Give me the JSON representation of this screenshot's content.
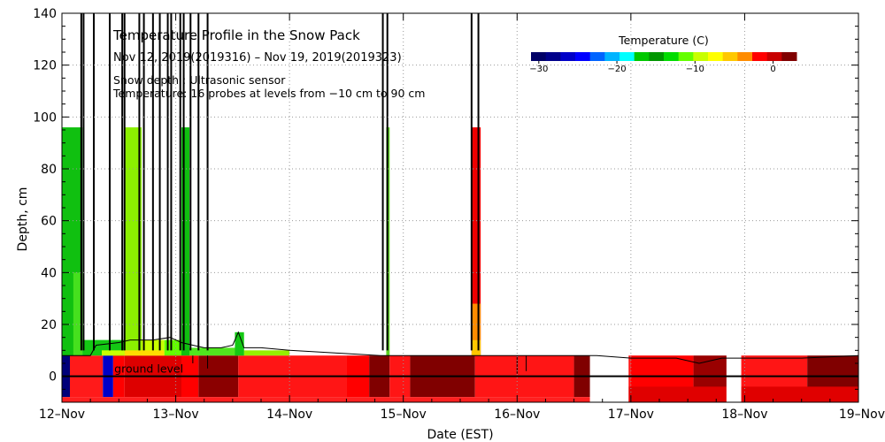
{
  "chart_data": {
    "type": "heatmap",
    "title": "Temperature Profile in the Snow Pack",
    "subtitle": "Nov 12, 2019(2019316) – Nov 19, 2019(2019323)",
    "notes": [
      "Snow depth : Ultrasonic sensor",
      "Temperature: 16 probes at levels from −10 cm to 90 cm"
    ],
    "xlabel": "Date (EST)",
    "ylabel": "Depth, cm",
    "x_ticks": [
      "12–Nov",
      "13–Nov",
      "14–Nov",
      "15–Nov",
      "16–Nov",
      "17–Nov",
      "18–Nov",
      "19–Nov"
    ],
    "xlim_days": [
      12,
      19
    ],
    "ylim": [
      -10,
      140
    ],
    "y_ticks": [
      0,
      20,
      40,
      60,
      80,
      100,
      120,
      140
    ],
    "grid": true,
    "ground_label": "ground level",
    "colorbar": {
      "title": "Temperature (C)",
      "ticks": [
        -30,
        -20,
        -10,
        0
      ],
      "tick_labels": [
        "−30",
        "−20",
        "−10",
        "0"
      ],
      "range": [
        -31,
        3
      ],
      "colors": [
        "#000066",
        "#00008a",
        "#0000c8",
        "#0000ff",
        "#0064ff",
        "#00b4ff",
        "#00ffff",
        "#00c800",
        "#009600",
        "#00dc00",
        "#64ff00",
        "#c8ff00",
        "#ffff00",
        "#ffc800",
        "#ff8c00",
        "#ff0000",
        "#c80000",
        "#800000"
      ]
    },
    "temperature_blocks": [
      {
        "t0": 12.0,
        "t1": 12.07,
        "z0": -8,
        "z1": 8,
        "color": "#00007a"
      },
      {
        "t0": 12.07,
        "t1": 12.36,
        "z0": -8,
        "z1": 8,
        "color": "#ff1a1a"
      },
      {
        "t0": 12.36,
        "t1": 12.45,
        "z0": -8,
        "z1": 8,
        "color": "#0000c8"
      },
      {
        "t0": 12.45,
        "t1": 12.55,
        "z0": -8,
        "z1": 8,
        "color": "#ff0000"
      },
      {
        "t0": 12.55,
        "t1": 13.05,
        "z0": -8,
        "z1": 8,
        "color": "#dd0000"
      },
      {
        "t0": 13.05,
        "t1": 13.2,
        "z0": -8,
        "z1": 8,
        "color": "#ff0000"
      },
      {
        "t0": 13.2,
        "t1": 13.55,
        "z0": -8,
        "z1": 8,
        "color": "#8b0000"
      },
      {
        "t0": 13.55,
        "t1": 14.5,
        "z0": -8,
        "z1": 8,
        "color": "#ff1515"
      },
      {
        "t0": 14.5,
        "t1": 14.7,
        "z0": -8,
        "z1": 8,
        "color": "#ff0000"
      },
      {
        "t0": 14.7,
        "t1": 14.88,
        "z0": -8,
        "z1": 8,
        "color": "#800000"
      },
      {
        "t0": 14.88,
        "t1": 15.06,
        "z0": -8,
        "z1": 8,
        "color": "#ff1515"
      },
      {
        "t0": 15.06,
        "t1": 15.63,
        "z0": -8,
        "z1": 8,
        "color": "#800000"
      },
      {
        "t0": 15.63,
        "t1": 16.5,
        "z0": -8,
        "z1": 8,
        "color": "#ff1515"
      },
      {
        "t0": 16.5,
        "t1": 16.65,
        "z0": -8,
        "z1": 8,
        "color": "#800000"
      },
      {
        "t0": 16.65,
        "t1": 17.0,
        "z0": -8,
        "z1": 8,
        "color": "#ff1515"
      },
      {
        "t0": 17.0,
        "t1": 17.55,
        "z0": -8,
        "z1": 8,
        "color": "#ff0000"
      },
      {
        "t0": 17.55,
        "t1": 17.85,
        "z0": -8,
        "z1": 8,
        "color": "#990000"
      },
      {
        "t0": 17.85,
        "t1": 18.55,
        "z0": -8,
        "z1": 8,
        "color": "#ff1515"
      },
      {
        "t0": 18.55,
        "t1": 19.0,
        "z0": -8,
        "z1": 8,
        "color": "#800000"
      },
      {
        "t0": 12.0,
        "t1": 19.0,
        "z0": -10,
        "z1": -8,
        "color": "#ff2020"
      },
      {
        "t0": 16.65,
        "t1": 19.0,
        "z0": -10,
        "z1": -4,
        "color": "#e00000"
      },
      {
        "t0": 12.0,
        "t1": 12.18,
        "z0": 8,
        "z1": 96,
        "color": "#10c010"
      },
      {
        "t0": 12.1,
        "t1": 12.18,
        "z0": 8,
        "z1": 40,
        "color": "#46e01e"
      },
      {
        "t0": 12.18,
        "t1": 12.55,
        "z0": 8,
        "z1": 14,
        "color": "#14c814"
      },
      {
        "t0": 12.35,
        "t1": 12.55,
        "z0": 8,
        "z1": 10,
        "color": "#c8ff00"
      },
      {
        "t0": 12.55,
        "t1": 12.7,
        "z0": 8,
        "z1": 96,
        "color": "#8cf000"
      },
      {
        "t0": 12.7,
        "t1": 12.9,
        "z0": 8,
        "z1": 14,
        "color": "#c8ff00"
      },
      {
        "t0": 12.55,
        "t1": 12.9,
        "z0": 8,
        "z1": 10,
        "color": "#ffdc00"
      },
      {
        "t0": 12.9,
        "t1": 13.05,
        "z0": 8,
        "z1": 14,
        "color": "#64ff00"
      },
      {
        "t0": 13.05,
        "t1": 13.12,
        "z0": 8,
        "z1": 96,
        "color": "#10c010"
      },
      {
        "t0": 13.12,
        "t1": 13.6,
        "z0": 8,
        "z1": 11,
        "color": "#50e61e"
      },
      {
        "t0": 13.6,
        "t1": 14.0,
        "z0": 8,
        "z1": 10,
        "color": "#96f000"
      },
      {
        "t0": 13.52,
        "t1": 13.6,
        "z0": 8,
        "z1": 17,
        "color": "#14c814"
      },
      {
        "t0": 14.85,
        "t1": 14.88,
        "z0": 8,
        "z1": 96,
        "color": "#5cd020"
      },
      {
        "t0": 15.6,
        "t1": 15.68,
        "z0": 8,
        "z1": 96,
        "color": "#ee0000"
      },
      {
        "t0": 15.6,
        "t1": 15.68,
        "z0": 14,
        "z1": 28,
        "color": "#ff8c00"
      },
      {
        "t0": 15.6,
        "t1": 15.68,
        "z0": 8,
        "z1": 14,
        "color": "#ffc800"
      },
      {
        "t0": 16.64,
        "t1": 16.98,
        "z0": -10,
        "z1": 9,
        "color": "#ffffff"
      },
      {
        "t0": 17.84,
        "t1": 17.97,
        "z0": -10,
        "z1": 9,
        "color": "#ffffff"
      }
    ],
    "snow_depth": {
      "t": [
        12.0,
        12.25,
        12.3,
        12.5,
        12.6,
        12.8,
        12.95,
        13.0,
        13.05,
        13.15,
        13.25,
        13.4,
        13.5,
        13.55,
        13.6,
        13.75,
        14.0,
        14.4,
        14.8,
        15.0,
        15.5,
        15.6,
        15.7,
        16.0,
        16.5,
        16.7,
        17.0,
        17.4,
        17.6,
        17.8,
        18.0,
        18.5,
        19.0
      ],
      "z": [
        8,
        8,
        12,
        13,
        14,
        14,
        15,
        14,
        13,
        12,
        11,
        11,
        12,
        17,
        11,
        11,
        10,
        9,
        8,
        8,
        8,
        8,
        8,
        8,
        8,
        8,
        7,
        7,
        5,
        7,
        7,
        7,
        8
      ]
    },
    "spikes_days": [
      12.17,
      12.19,
      12.28,
      12.42,
      12.53,
      12.55,
      12.68,
      12.72,
      12.8,
      12.86,
      12.93,
      12.96,
      13.04,
      13.07,
      13.13,
      13.2,
      13.28,
      14.82,
      14.86,
      15.6,
      15.66
    ],
    "missing_dips": [
      [
        13.15,
        5
      ],
      [
        13.28,
        3
      ],
      [
        16.0,
        1
      ],
      [
        16.08,
        2
      ]
    ]
  }
}
